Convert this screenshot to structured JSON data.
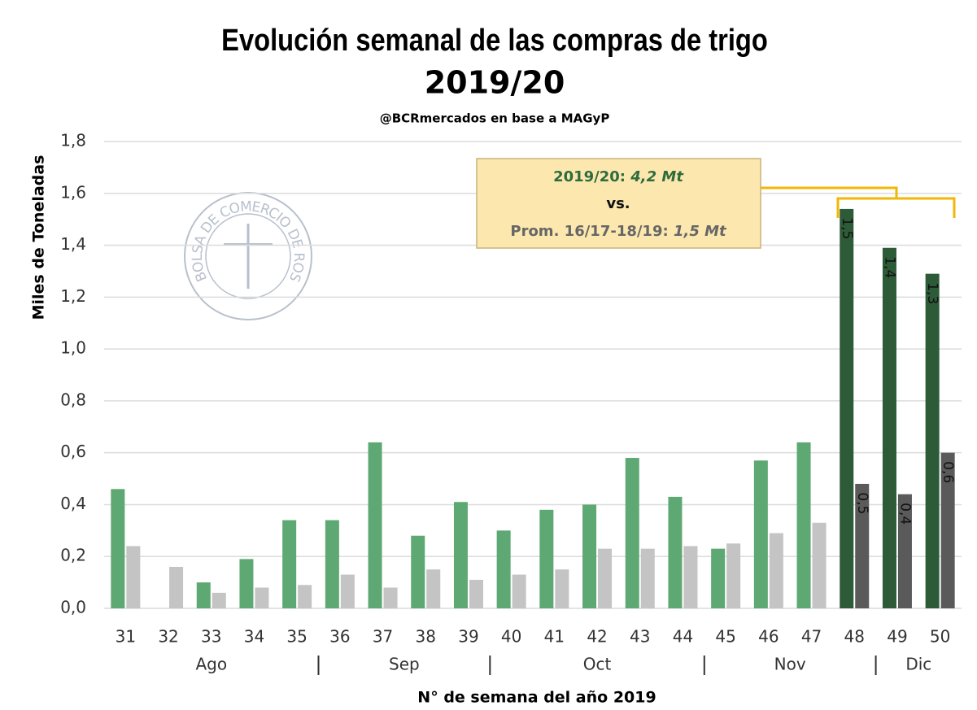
{
  "chart_data": {
    "type": "bar",
    "title": [
      "Evolución semanal de las compras de trigo",
      "2019/20"
    ],
    "subtitle": "@BCRmercados en base a MAGyP",
    "y_label": "Miles de Toneladas",
    "x_label": "N° de semana del año 2019",
    "watermark": "BOLSA DE COMERCIO DE ROSARIO",
    "categories": [
      "31",
      "32",
      "33",
      "34",
      "35",
      "36",
      "37",
      "38",
      "39",
      "40",
      "41",
      "42",
      "43",
      "44",
      "45",
      "46",
      "47",
      "48",
      "49",
      "50"
    ],
    "months": [
      {
        "label": "Ago",
        "first": 0,
        "last": 4
      },
      {
        "label": "Sep",
        "first": 5,
        "last": 8
      },
      {
        "label": "Oct",
        "first": 9,
        "last": 13
      },
      {
        "label": "Nov",
        "first": 14,
        "last": 17
      },
      {
        "label": "Dic",
        "first": 18,
        "last": 19
      }
    ],
    "series": [
      {
        "colors": [
          "#5ea873",
          "#5ea873",
          "#5ea873",
          "#5ea873",
          "#5ea873",
          "#5ea873",
          "#5ea873",
          "#5ea873",
          "#5ea873",
          "#5ea873",
          "#5ea873",
          "#5ea873",
          "#5ea873",
          "#5ea873",
          "#5ea873",
          "#5ea873",
          "#5ea873",
          "#2d5a37",
          "#2d5a37",
          "#2d5a37"
        ],
        "values": [
          0.46,
          0,
          0.1,
          0.19,
          0.34,
          0.34,
          0.64,
          0.28,
          0.41,
          0.3,
          0.38,
          0.4,
          0.58,
          0.43,
          0.23,
          0.57,
          0.64,
          1.54,
          1.39,
          1.29
        ],
        "value_labels": [
          null,
          null,
          null,
          null,
          null,
          null,
          null,
          null,
          null,
          null,
          null,
          null,
          null,
          null,
          null,
          null,
          null,
          "1,5",
          "1,4",
          "1,3"
        ]
      },
      {
        "colors": [
          "#c4c4c4",
          "#c4c4c4",
          "#c4c4c4",
          "#c4c4c4",
          "#c4c4c4",
          "#c4c4c4",
          "#c4c4c4",
          "#c4c4c4",
          "#c4c4c4",
          "#c4c4c4",
          "#c4c4c4",
          "#c4c4c4",
          "#c4c4c4",
          "#c4c4c4",
          "#c4c4c4",
          "#c4c4c4",
          "#c4c4c4",
          "#5a5a5a",
          "#5a5a5a",
          "#5a5a5a"
        ],
        "values": [
          0.24,
          0.16,
          0.06,
          0.08,
          0.09,
          0.13,
          0.08,
          0.15,
          0.11,
          0.13,
          0.15,
          0.23,
          0.23,
          0.24,
          0.25,
          0.29,
          0.33,
          0.48,
          0.44,
          0.6
        ],
        "value_labels": [
          null,
          null,
          null,
          null,
          null,
          null,
          null,
          null,
          null,
          null,
          null,
          null,
          null,
          null,
          null,
          null,
          null,
          "0,5",
          "0,4",
          "0,6"
        ]
      }
    ],
    "ylim": [
      0,
      1.8
    ],
    "yticks": [
      {
        "value": 0,
        "label": "0,0"
      },
      {
        "value": 0.2,
        "label": "0,2"
      },
      {
        "value": 0.4,
        "label": "0,4"
      },
      {
        "value": 0.6,
        "label": "0,6"
      },
      {
        "value": 0.8,
        "label": "0,8"
      },
      {
        "value": 1.0,
        "label": "1,0"
      },
      {
        "value": 1.2,
        "label": "1,2"
      },
      {
        "value": 1.4,
        "label": "1,4"
      },
      {
        "value": 1.6,
        "label": "1,6"
      },
      {
        "value": 1.8,
        "label": "1,8"
      }
    ],
    "grid": true,
    "annotation": {
      "line1": {
        "label": "2019/20: ",
        "value": "4,2 Mt"
      },
      "line2": "vs.",
      "line3": {
        "label": "Prom. 16/17-18/19: ",
        "value": "1,5 Mt"
      }
    }
  }
}
